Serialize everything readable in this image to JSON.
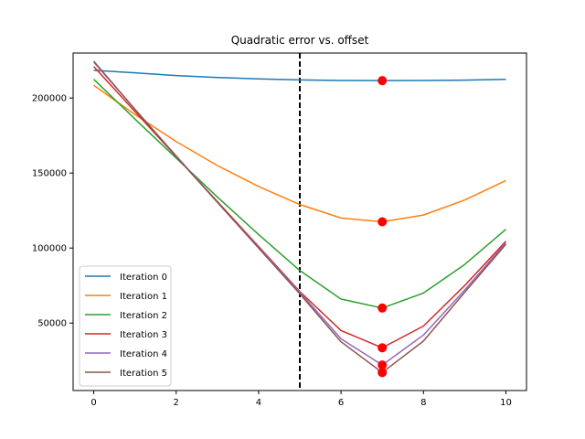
{
  "chart_data": {
    "type": "line",
    "title": "Quadratic error vs. offset",
    "xlabel": "",
    "ylabel": "",
    "xlim": [
      -0.5,
      10.5
    ],
    "ylim": [
      5000,
      230000
    ],
    "x_ticks": [
      0,
      2,
      4,
      6,
      8,
      10
    ],
    "y_ticks": [
      50000,
      100000,
      150000,
      200000
    ],
    "grid": false,
    "legend_position": "lower-left",
    "x": [
      0,
      1,
      2,
      3,
      4,
      5,
      6,
      7,
      8,
      9,
      10
    ],
    "series": [
      {
        "name": "Iteration 0",
        "color": "#1f77b4",
        "values": [
          218500,
          216800,
          215000,
          213700,
          212800,
          212100,
          211700,
          211600,
          211700,
          211900,
          212500
        ]
      },
      {
        "name": "Iteration 1",
        "color": "#ff7f0e",
        "values": [
          208500,
          189000,
          171000,
          155000,
          141000,
          129000,
          120000,
          117500,
          122000,
          132000,
          145000
        ]
      },
      {
        "name": "Iteration 2",
        "color": "#2ca02c",
        "values": [
          212500,
          186000,
          160000,
          134000,
          109000,
          85000,
          66000,
          60000,
          70000,
          89000,
          112500
        ]
      },
      {
        "name": "Iteration 3",
        "color": "#d62728",
        "values": [
          221000,
          191000,
          161000,
          131000,
          101000,
          71000,
          45000,
          33500,
          48000,
          75000,
          104500
        ]
      },
      {
        "name": "Iteration 4",
        "color": "#9467bd",
        "values": [
          224000,
          192500,
          161500,
          130500,
          100500,
          70500,
          39500,
          22000,
          42000,
          72000,
          103500
        ]
      },
      {
        "name": "Iteration 5",
        "color": "#8c564b",
        "values": [
          224500,
          192500,
          161000,
          130500,
          100000,
          69500,
          37500,
          17000,
          38000,
          70500,
          102500
        ]
      }
    ],
    "vertical_line": {
      "x": 5,
      "style": "dashed",
      "color": "#000000"
    },
    "markers": {
      "x": 7,
      "color": "#ff0000",
      "values": [
        211600,
        117500,
        60000,
        33500,
        22000,
        17000
      ]
    }
  }
}
